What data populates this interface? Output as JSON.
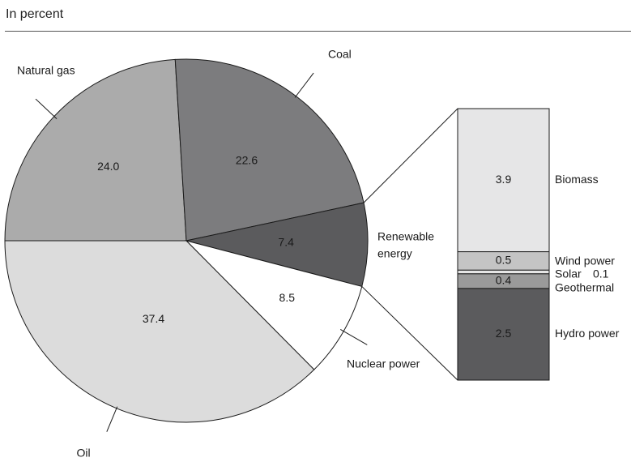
{
  "header": {
    "subtitle": "In percent"
  },
  "colors": {
    "oil": "#dcdcdc",
    "natural_gas": "#ababab",
    "coal": "#7c7c7e",
    "renewable": "#5b5b5d",
    "nuclear": "#ffffff",
    "biomass": "#e6e6e7",
    "wind": "#c4c4c4",
    "solar": "#e6e6e6",
    "geothermal": "#9a9a9a",
    "hydro": "#5b5b5d",
    "outline": "#1a1a1a"
  },
  "chart_data": [
    {
      "type": "pie",
      "slices": [
        {
          "key": "oil",
          "label": "Oil",
          "value": 37.4,
          "value_label": "37.4"
        },
        {
          "key": "natural_gas",
          "label": "Natural gas",
          "value": 24.0,
          "value_label": "24.0"
        },
        {
          "key": "coal",
          "label": "Coal",
          "value": 22.6,
          "value_label": "22.6"
        },
        {
          "key": "renewable",
          "label": "Renewable energy",
          "label_lines": [
            "Renewable",
            "energy"
          ],
          "value": 7.4,
          "value_label": "7.4"
        },
        {
          "key": "nuclear",
          "label": "Nuclear power",
          "value": 8.5,
          "value_label": "8.5"
        }
      ]
    },
    {
      "type": "bar",
      "stacked": true,
      "breakdown_of": "Renewable energy",
      "segments": [
        {
          "key": "hydro",
          "label": "Hydro power",
          "value": 2.5,
          "value_label": "2.5"
        },
        {
          "key": "geothermal",
          "label": "Geothermal",
          "value": 0.4,
          "value_label": "0.4"
        },
        {
          "key": "solar",
          "label": "Solar",
          "value": 0.1,
          "value_label": "0.1"
        },
        {
          "key": "wind",
          "label": "Wind power",
          "value": 0.5,
          "value_label": "0.5"
        },
        {
          "key": "biomass",
          "label": "Biomass",
          "value": 3.9,
          "value_label": "3.9"
        }
      ]
    }
  ]
}
